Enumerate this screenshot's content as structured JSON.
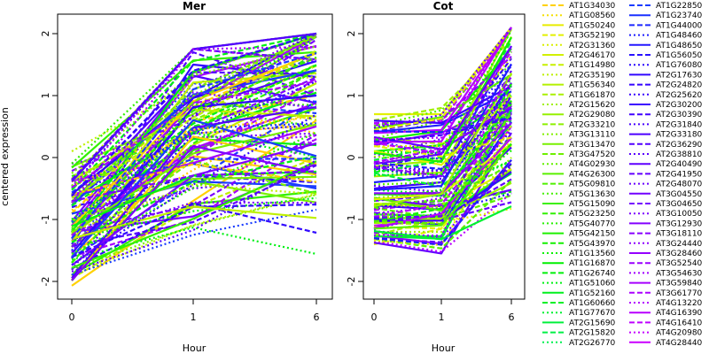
{
  "chart_data": [
    {
      "type": "line",
      "title": "Mer",
      "xlabel": "Hour",
      "ylabel": "centered expression",
      "categories": [
        "0",
        "1",
        "6"
      ],
      "ylim": [
        -2,
        2
      ],
      "yticks": [
        -2,
        -1,
        0,
        1,
        2
      ],
      "series_count": 120,
      "series": [
        {
          "values": [
            -2.07,
            -0.7,
            0.6
          ]
        },
        {
          "values": [
            -1.95,
            -0.8,
            0.0
          ]
        },
        {
          "values": [
            -1.8,
            -1.1,
            -0.6
          ]
        },
        {
          "values": [
            -1.9,
            -0.75,
            -0.55
          ]
        },
        {
          "values": [
            -1.7,
            0.5,
            1.1
          ]
        },
        {
          "values": [
            -1.5,
            1.2,
            0.9
          ]
        },
        {
          "values": [
            -1.4,
            1.5,
            1.3
          ]
        },
        {
          "values": [
            -1.2,
            1.7,
            1.0
          ]
        },
        {
          "values": [
            -1.3,
            1.1,
            2.0
          ]
        },
        {
          "values": [
            -1.1,
            1.3,
            1.8
          ]
        },
        {
          "values": [
            -0.9,
            1.0,
            1.6
          ]
        },
        {
          "values": [
            0.1,
            1.2,
            1.3
          ]
        },
        {
          "values": [
            -0.15,
            0.7,
            1.95
          ]
        },
        {
          "values": [
            -0.3,
            0.4,
            1.7
          ]
        },
        {
          "values": [
            -0.5,
            0.9,
            1.9
          ]
        },
        {
          "values": [
            -0.6,
            -0.1,
            -0.5
          ]
        },
        {
          "values": [
            -0.8,
            -0.3,
            -0.4
          ]
        },
        {
          "values": [
            -1.0,
            -0.5,
            -0.3
          ]
        },
        {
          "values": [
            -1.2,
            -0.95,
            -0.1
          ]
        },
        {
          "values": [
            -1.6,
            -1.0,
            0.3
          ]
        },
        {
          "values": [
            -1.35,
            -0.2,
            0.8
          ]
        },
        {
          "values": [
            -1.25,
            0.2,
            1.2
          ]
        },
        {
          "values": [
            -1.45,
            0.6,
            1.5
          ]
        },
        {
          "values": [
            -1.15,
            0.8,
            0.5
          ]
        },
        {
          "values": [
            -1.05,
            0.3,
            0.2
          ]
        }
      ]
    },
    {
      "type": "line",
      "title": "Cot",
      "xlabel": "Hour",
      "categories": [
        "0",
        "1",
        "6"
      ],
      "ylim": [
        -2,
        2
      ],
      "yticks": [
        -2,
        -1,
        0,
        1,
        2
      ],
      "series_count": 120,
      "series": [
        {
          "values": [
            0.7,
            0.7,
            2.1
          ]
        },
        {
          "values": [
            0.6,
            0.8,
            1.9
          ]
        },
        {
          "values": [
            0.3,
            0.6,
            1.5
          ]
        },
        {
          "values": [
            0.1,
            0.2,
            1.0
          ]
        },
        {
          "values": [
            -0.1,
            0.0,
            0.6
          ]
        },
        {
          "values": [
            -0.3,
            -0.2,
            0.3
          ]
        },
        {
          "values": [
            -0.5,
            -0.4,
            1.2
          ]
        },
        {
          "values": [
            -0.7,
            -0.6,
            1.4
          ]
        },
        {
          "values": [
            -0.9,
            -0.8,
            0.8
          ]
        },
        {
          "values": [
            -1.1,
            -1.0,
            0.5
          ]
        },
        {
          "values": [
            -1.4,
            -1.15,
            0.2
          ]
        },
        {
          "values": [
            -1.2,
            -1.2,
            0.0
          ]
        },
        {
          "values": [
            -1.0,
            -0.95,
            -0.2
          ]
        },
        {
          "values": [
            -0.8,
            -0.75,
            -0.55
          ]
        },
        {
          "values": [
            -0.6,
            -0.55,
            -0.6
          ]
        },
        {
          "values": [
            -0.4,
            -0.3,
            1.8
          ]
        },
        {
          "values": [
            -0.2,
            0.1,
            1.6
          ]
        },
        {
          "values": [
            0.0,
            0.3,
            1.3
          ]
        },
        {
          "values": [
            0.2,
            0.4,
            0.9
          ]
        },
        {
          "values": [
            -0.85,
            -0.7,
            1.1
          ]
        }
      ]
    }
  ],
  "legend": {
    "col1": [
      {
        "label": "AT1G34030",
        "color": "#ffd100",
        "style": "dash"
      },
      {
        "label": "AT1G08560",
        "color": "#f5e000",
        "style": "dot"
      },
      {
        "label": "AT1G50240",
        "color": "#e8ec00",
        "style": "solid"
      },
      {
        "label": "AT3G52190",
        "color": "#e3f000",
        "style": "dash"
      },
      {
        "label": "AT2G31360",
        "color": "#daf000",
        "style": "dot"
      },
      {
        "label": "AT2G46170",
        "color": "#d2f000",
        "style": "solid"
      },
      {
        "label": "AT1G14980",
        "color": "#c8f000",
        "style": "dash"
      },
      {
        "label": "AT2G35190",
        "color": "#bef000",
        "style": "dot"
      },
      {
        "label": "AT1G56340",
        "color": "#b4f000",
        "style": "solid"
      },
      {
        "label": "AT1G61870",
        "color": "#aaf000",
        "style": "dash"
      },
      {
        "label": "AT2G15620",
        "color": "#a0f000",
        "style": "dot"
      },
      {
        "label": "AT2G29080",
        "color": "#96f000",
        "style": "solid"
      },
      {
        "label": "AT2G33210",
        "color": "#8cf000",
        "style": "dash"
      },
      {
        "label": "AT3G13110",
        "color": "#82f000",
        "style": "dot"
      },
      {
        "label": "AT3G13470",
        "color": "#78f000",
        "style": "solid"
      },
      {
        "label": "AT3G47520",
        "color": "#6ef000",
        "style": "dash"
      },
      {
        "label": "AT4G02930",
        "color": "#64f000",
        "style": "dot"
      },
      {
        "label": "AT4G26300",
        "color": "#5af000",
        "style": "solid"
      },
      {
        "label": "AT5G09810",
        "color": "#50f000",
        "style": "dash"
      },
      {
        "label": "AT5G13630",
        "color": "#46f000",
        "style": "dot"
      },
      {
        "label": "AT5G15090",
        "color": "#3cf000",
        "style": "solid"
      },
      {
        "label": "AT5G23250",
        "color": "#32f000",
        "style": "dash"
      },
      {
        "label": "AT5G40770",
        "color": "#28f000",
        "style": "dot"
      },
      {
        "label": "AT5G42150",
        "color": "#1ef000",
        "style": "solid"
      },
      {
        "label": "AT5G43970",
        "color": "#14f000",
        "style": "dash"
      },
      {
        "label": "AT1G13560",
        "color": "#0af000",
        "style": "dot"
      },
      {
        "label": "AT1G16870",
        "color": "#00f000",
        "style": "solid"
      },
      {
        "label": "AT1G26740",
        "color": "#00f00a",
        "style": "dash"
      },
      {
        "label": "AT1G51060",
        "color": "#00f014",
        "style": "dot"
      },
      {
        "label": "AT1G52160",
        "color": "#00f01e",
        "style": "solid"
      },
      {
        "label": "AT1G60660",
        "color": "#00f028",
        "style": "dash"
      },
      {
        "label": "AT1G77670",
        "color": "#00f032",
        "style": "dot"
      },
      {
        "label": "AT2G15690",
        "color": "#00f03c",
        "style": "solid"
      },
      {
        "label": "AT2G15820",
        "color": "#00f046",
        "style": "dash"
      },
      {
        "label": "AT2G26770",
        "color": "#00f050",
        "style": "dot"
      }
    ],
    "col2": [
      {
        "label": "AT1G22850",
        "color": "#1a3cff",
        "style": "dash"
      },
      {
        "label": "AT1G23740",
        "color": "#1a30ff",
        "style": "solid"
      },
      {
        "label": "AT1G44000",
        "color": "#1c28ff",
        "style": "dash"
      },
      {
        "label": "AT1G48460",
        "color": "#1e1eff",
        "style": "dot"
      },
      {
        "label": "AT1G48650",
        "color": "#2418ff",
        "style": "solid"
      },
      {
        "label": "AT1G56050",
        "color": "#2812ff",
        "style": "dash"
      },
      {
        "label": "AT1G76080",
        "color": "#2c0cff",
        "style": "dot"
      },
      {
        "label": "AT2G17630",
        "color": "#3008ff",
        "style": "solid"
      },
      {
        "label": "AT2G24820",
        "color": "#3404ff",
        "style": "dash"
      },
      {
        "label": "AT2G25620",
        "color": "#3800ff",
        "style": "dot"
      },
      {
        "label": "AT2G30200",
        "color": "#3c00ff",
        "style": "solid"
      },
      {
        "label": "AT2G30390",
        "color": "#4000ff",
        "style": "dash"
      },
      {
        "label": "AT2G31840",
        "color": "#4600ff",
        "style": "dot"
      },
      {
        "label": "AT2G33180",
        "color": "#4c00ff",
        "style": "solid"
      },
      {
        "label": "AT2G36290",
        "color": "#5200ff",
        "style": "dash"
      },
      {
        "label": "AT2G38810",
        "color": "#5800ff",
        "style": "dot"
      },
      {
        "label": "AT2G40490",
        "color": "#5e00ff",
        "style": "solid"
      },
      {
        "label": "AT2G41950",
        "color": "#6400ff",
        "style": "dash"
      },
      {
        "label": "AT2G48070",
        "color": "#6a00ff",
        "style": "dot"
      },
      {
        "label": "AT3G04550",
        "color": "#7000ff",
        "style": "solid"
      },
      {
        "label": "AT3G04650",
        "color": "#7600ff",
        "style": "dash"
      },
      {
        "label": "AT3G10050",
        "color": "#7c00ff",
        "style": "dot"
      },
      {
        "label": "AT3G12930",
        "color": "#8200ff",
        "style": "solid"
      },
      {
        "label": "AT3G18110",
        "color": "#8800ff",
        "style": "dash"
      },
      {
        "label": "AT3G24440",
        "color": "#8e00ff",
        "style": "dot"
      },
      {
        "label": "AT3G28460",
        "color": "#9400ff",
        "style": "solid"
      },
      {
        "label": "AT3G52540",
        "color": "#9a00ff",
        "style": "dash"
      },
      {
        "label": "AT3G54630",
        "color": "#a000ff",
        "style": "dot"
      },
      {
        "label": "AT3G59840",
        "color": "#a600ff",
        "style": "solid"
      },
      {
        "label": "AT3G61770",
        "color": "#ac00ff",
        "style": "dash"
      },
      {
        "label": "AT4G13220",
        "color": "#b200ff",
        "style": "dot"
      },
      {
        "label": "AT4G16390",
        "color": "#b800ff",
        "style": "solid"
      },
      {
        "label": "AT4G16410",
        "color": "#be00ff",
        "style": "dash"
      },
      {
        "label": "AT4G20980",
        "color": "#c400ff",
        "style": "dot"
      },
      {
        "label": "AT4G28440",
        "color": "#ca00ff",
        "style": "solid"
      }
    ]
  }
}
